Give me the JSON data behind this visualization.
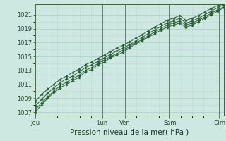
{
  "bg_color": "#cce8e0",
  "grid_color_major": "#aacccc",
  "grid_color_minor": "#bbdddd",
  "line_color": "#2a5c35",
  "marker_color": "#2a5c35",
  "xlabel": "Pression niveau de la mer( hPa )",
  "ylim": [
    1006.5,
    1022.5
  ],
  "yticks": [
    1007,
    1009,
    1011,
    1013,
    1015,
    1017,
    1019,
    1021
  ],
  "xtick_labels": [
    "Jeu",
    "",
    "Lun",
    "Ven",
    "",
    "Sam",
    "",
    "Dim"
  ],
  "xtick_positions": [
    0,
    1.5,
    3.0,
    4.0,
    5.0,
    6.0,
    7.0,
    8.2
  ],
  "vlines": [
    0,
    3.0,
    4.0,
    6.0,
    8.2
  ],
  "total_days": 8.4,
  "series": [
    [
      1007.0,
      1008.0,
      1009.0,
      1009.8,
      1010.5,
      1011.0,
      1011.5,
      1012.0,
      1012.8,
      1013.1,
      1013.8,
      1014.2,
      1014.8,
      1015.2,
      1015.6,
      1016.2,
      1016.8,
      1017.2,
      1017.8,
      1018.2,
      1018.8,
      1019.2,
      1019.5,
      1019.8,
      1019.2,
      1019.5,
      1020.0,
      1020.5,
      1021.0,
      1021.5,
      1022.0
    ],
    [
      1007.3,
      1008.3,
      1009.2,
      1010.0,
      1010.8,
      1011.3,
      1011.8,
      1012.3,
      1013.0,
      1013.4,
      1014.0,
      1014.5,
      1015.0,
      1015.4,
      1015.9,
      1016.4,
      1017.0,
      1017.4,
      1018.0,
      1018.5,
      1019.0,
      1019.5,
      1019.8,
      1020.1,
      1019.5,
      1019.8,
      1020.2,
      1020.7,
      1021.2,
      1021.7,
      1022.1
    ],
    [
      1007.8,
      1008.8,
      1009.7,
      1010.5,
      1011.2,
      1011.8,
      1012.2,
      1012.8,
      1013.4,
      1013.8,
      1014.3,
      1014.8,
      1015.3,
      1015.8,
      1016.2,
      1016.7,
      1017.2,
      1017.7,
      1018.3,
      1018.8,
      1019.3,
      1019.8,
      1020.1,
      1020.5,
      1019.8,
      1020.1,
      1020.5,
      1021.0,
      1021.5,
      1022.0,
      1022.4
    ],
    [
      1008.5,
      1009.5,
      1010.3,
      1011.0,
      1011.7,
      1012.2,
      1012.7,
      1013.2,
      1013.8,
      1014.2,
      1014.7,
      1015.2,
      1015.7,
      1016.2,
      1016.6,
      1017.1,
      1017.6,
      1018.1,
      1018.7,
      1019.2,
      1019.7,
      1020.2,
      1020.5,
      1020.9,
      1020.2,
      1020.5,
      1020.9,
      1021.4,
      1021.9,
      1022.3,
      1022.5
    ]
  ],
  "xlabel_fontsize": 7.5,
  "tick_fontsize": 6,
  "ylabel_fontsize": 6
}
